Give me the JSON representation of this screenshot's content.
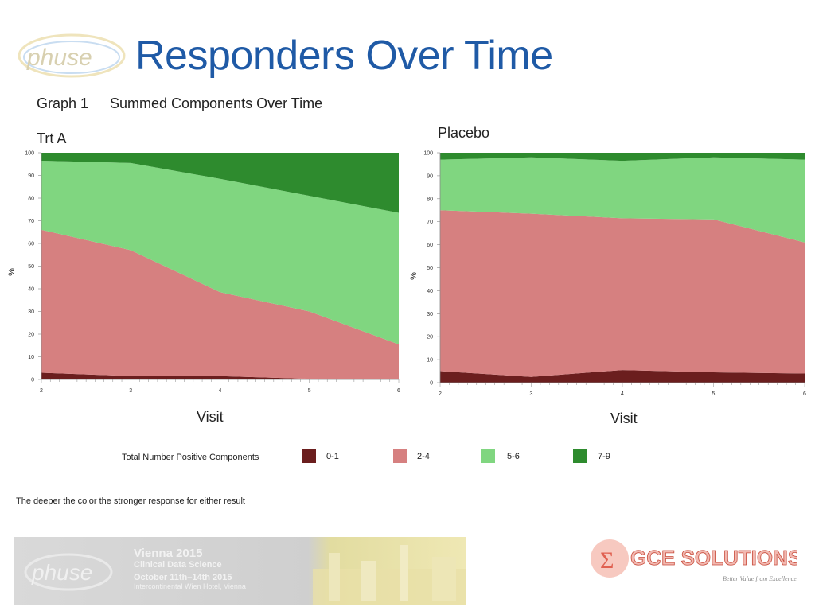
{
  "header": {
    "title": "Responders Over Time",
    "graph_label": "Graph 1",
    "graph_subtitle": "Summed Components Over Time"
  },
  "logos": {
    "phuse_text": "phuse",
    "gce_text": "GCE SOLUTIONS",
    "gce_tagline": "Better Value from Excellence"
  },
  "banner": {
    "line1": "Vienna 2015",
    "line2": "Clinical Data Science",
    "line3": "October 11th–14th 2015",
    "line4": "Intercontinental Wien Hotel, Vienna"
  },
  "legend": {
    "title": "Total Number Positive Components",
    "items": [
      {
        "label": "0-1",
        "color": "#6b1e1e"
      },
      {
        "label": "2-4",
        "color": "#d68080"
      },
      {
        "label": "5-6",
        "color": "#80d680"
      },
      {
        "label": "7-9",
        "color": "#2e8b2e"
      }
    ]
  },
  "footnote": "The deeper the color the stronger response for either result",
  "chart_data": [
    {
      "type": "area",
      "stacked": true,
      "title": "Trt A",
      "xlabel": "Visit",
      "ylabel": "%",
      "x": [
        2,
        3,
        4,
        5,
        6
      ],
      "xlim": [
        2,
        6
      ],
      "ylim": [
        0,
        100
      ],
      "yticks": [
        0,
        10,
        20,
        30,
        40,
        50,
        60,
        70,
        80,
        90,
        100
      ],
      "series": [
        {
          "name": "0-1",
          "color": "#6b1e1e",
          "values": [
            3,
            1.5,
            1.5,
            0.3,
            0
          ]
        },
        {
          "name": "2-4",
          "color": "#d68080",
          "values": [
            63,
            55.5,
            37,
            29.7,
            15.5
          ]
        },
        {
          "name": "5-6",
          "color": "#80d680",
          "values": [
            30.5,
            38.5,
            50,
            51,
            58
          ]
        },
        {
          "name": "7-9",
          "color": "#2e8b2e",
          "values": [
            3.5,
            4.5,
            11.5,
            19,
            26.5
          ]
        }
      ]
    },
    {
      "type": "area",
      "stacked": true,
      "title": "Placebo",
      "xlabel": "Visit",
      "ylabel": "%",
      "x": [
        2,
        3,
        4,
        5,
        6
      ],
      "xlim": [
        2,
        6
      ],
      "ylim": [
        0,
        100
      ],
      "yticks": [
        0,
        10,
        20,
        30,
        40,
        50,
        60,
        70,
        80,
        90,
        100
      ],
      "series": [
        {
          "name": "0-1",
          "color": "#6b1e1e",
          "values": [
            5,
            2.5,
            5.5,
            4.5,
            4
          ]
        },
        {
          "name": "2-4",
          "color": "#d68080",
          "values": [
            70,
            71,
            66,
            66.5,
            57
          ]
        },
        {
          "name": "5-6",
          "color": "#80d680",
          "values": [
            22,
            24.5,
            25,
            27,
            36
          ]
        },
        {
          "name": "7-9",
          "color": "#2e8b2e",
          "values": [
            3,
            2,
            3.5,
            2,
            3
          ]
        }
      ]
    }
  ]
}
